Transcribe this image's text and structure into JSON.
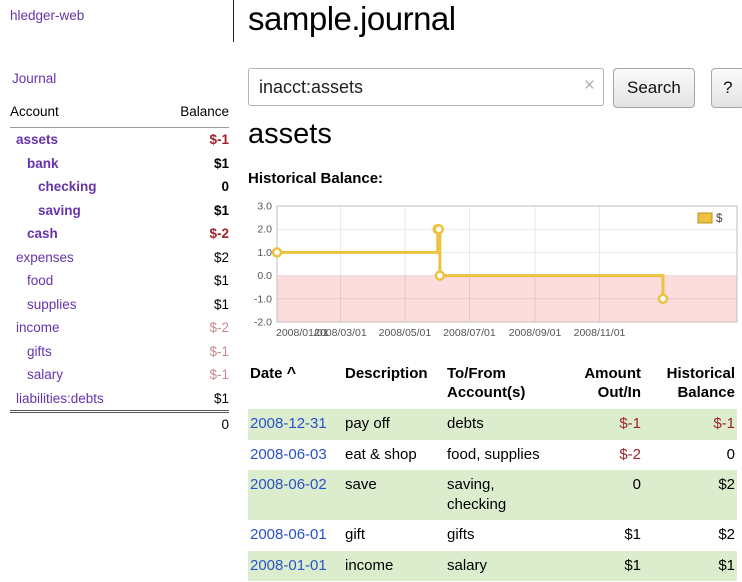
{
  "colors": {
    "link_purple": "#6633aa",
    "negative_red": "#a0232a",
    "faded_red": "#c98b8b",
    "date_blue": "#2952cc",
    "row_green": "#dcedcd"
  },
  "sidebar": {
    "app_title": "hledger-web",
    "nav": [
      {
        "label": "Journal"
      }
    ],
    "accounts_table": {
      "headers": {
        "account": "Account",
        "balance": "Balance"
      },
      "rows": [
        {
          "name": "assets",
          "indent": 0,
          "balance": "$-1",
          "bold": true,
          "name_color": "red",
          "balance_color": "red"
        },
        {
          "name": "bank",
          "indent": 1,
          "balance": "$1",
          "bold": true,
          "name_color": "purple",
          "balance_color": "black"
        },
        {
          "name": "checking",
          "indent": 2,
          "balance": "0",
          "bold": true,
          "name_color": "purple",
          "balance_color": "black"
        },
        {
          "name": "saving",
          "indent": 2,
          "balance": "$1",
          "bold": true,
          "name_color": "purple",
          "balance_color": "black"
        },
        {
          "name": "cash",
          "indent": 1,
          "balance": "$-2",
          "bold": true,
          "name_color": "red",
          "balance_color": "red"
        },
        {
          "name": "expenses",
          "indent": 0,
          "balance": "$2",
          "bold": false,
          "name_color": "purple",
          "balance_color": "black"
        },
        {
          "name": "food",
          "indent": 1,
          "balance": "$1",
          "bold": false,
          "name_color": "purple",
          "balance_color": "black"
        },
        {
          "name": "supplies",
          "indent": 1,
          "balance": "$1",
          "bold": false,
          "name_color": "purple",
          "balance_color": "black"
        },
        {
          "name": "income",
          "indent": 0,
          "balance": "$-2",
          "bold": false,
          "name_color": "purple",
          "balance_color": "faded"
        },
        {
          "name": "gifts",
          "indent": 1,
          "balance": "$-1",
          "bold": false,
          "name_color": "purple",
          "balance_color": "faded"
        },
        {
          "name": "salary",
          "indent": 1,
          "balance": "$-1",
          "bold": false,
          "name_color": "purple",
          "balance_color": "faded"
        },
        {
          "name": "liabilities:debts",
          "indent": 0,
          "balance": "$1",
          "bold": false,
          "name_color": "purple",
          "balance_color": "black"
        }
      ],
      "total": "0"
    }
  },
  "main": {
    "title": "sample.journal",
    "search": {
      "value": "inacct:assets",
      "clear_icon": "×",
      "button_label": "Search",
      "help_label": "?"
    },
    "account_heading": "assets",
    "chart_heading": "Historical Balance:"
  },
  "chart_data": {
    "type": "line",
    "step": true,
    "title": "Historical Balance:",
    "legend": [
      {
        "label": "$",
        "color": "#edc240"
      }
    ],
    "series": [
      {
        "name": "$",
        "points": [
          [
            "2008-01-01",
            1
          ],
          [
            "2008-06-01",
            2
          ],
          [
            "2008-06-02",
            2
          ],
          [
            "2008-06-03",
            0
          ],
          [
            "2008-12-31",
            -1
          ]
        ]
      }
    ],
    "ylim": [
      -2,
      3
    ],
    "y_ticks": [
      "3.0",
      "2.0",
      "1.0",
      "0.0",
      "-1.0",
      "-2.0"
    ],
    "x_ticks": [
      {
        "label": "2008/01/01",
        "date": "2008-01-01"
      },
      {
        "label": "2008/03/01",
        "date": "2008-03-01"
      },
      {
        "label": "2008/05/01",
        "date": "2008-05-01"
      },
      {
        "label": "2008/07/01",
        "date": "2008-07-01"
      },
      {
        "label": "2008/09/01",
        "date": "2008-09-01"
      },
      {
        "label": "2008/11/01",
        "date": "2008-11-01"
      }
    ],
    "x_domain": [
      "2008-01-01",
      "2009-03-11"
    ],
    "grid": true,
    "legend_position": "top-right",
    "line_color": "#edc240",
    "negative_region_color": "#fcdcdc"
  },
  "transactions": {
    "headers": [
      "Date",
      "Description",
      "To/From Account(s)",
      "Amount Out/In",
      "Historical Balance"
    ],
    "sort_icon": "^",
    "rows": [
      {
        "date": "2008-12-31",
        "description": "pay off",
        "accounts": "debts",
        "amount": "$-1",
        "amount_negative": true,
        "balance": "$-1",
        "balance_negative": true,
        "shaded": true
      },
      {
        "date": "2008-06-03",
        "description": "eat & shop",
        "accounts": "food, supplies",
        "amount": "$-2",
        "amount_negative": true,
        "balance": "0",
        "balance_negative": false,
        "shaded": false
      },
      {
        "date": "2008-06-02",
        "description": "save",
        "accounts": "saving, checking",
        "amount": "0",
        "amount_negative": false,
        "balance": "$2",
        "balance_negative": false,
        "shaded": true
      },
      {
        "date": "2008-06-01",
        "description": "gift",
        "accounts": "gifts",
        "amount": "$1",
        "amount_negative": false,
        "balance": "$2",
        "balance_negative": false,
        "shaded": false
      },
      {
        "date": "2008-01-01",
        "description": "income",
        "accounts": "salary",
        "amount": "$1",
        "amount_negative": false,
        "balance": "$1",
        "balance_negative": false,
        "shaded": true
      }
    ]
  }
}
